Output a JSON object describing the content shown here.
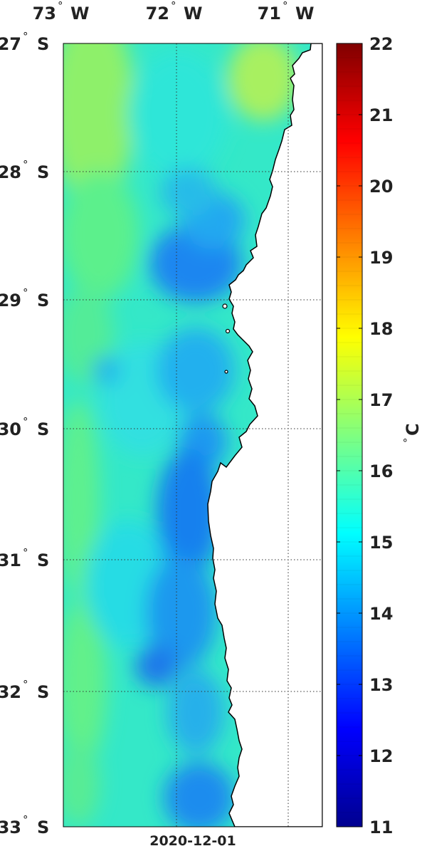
{
  "map": {
    "date": "2020-12-01",
    "lon_labels": [
      {
        "deg": "73",
        "hemi": "W"
      },
      {
        "deg": "72",
        "hemi": "W"
      },
      {
        "deg": "71",
        "hemi": "W"
      }
    ],
    "lat_labels": [
      {
        "deg": "27",
        "hemi": "S"
      },
      {
        "deg": "28",
        "hemi": "S"
      },
      {
        "deg": "29",
        "hemi": "S"
      },
      {
        "deg": "30",
        "hemi": "S"
      },
      {
        "deg": "31",
        "hemi": "S"
      },
      {
        "deg": "32",
        "hemi": "S"
      },
      {
        "deg": "33",
        "hemi": "S"
      }
    ],
    "degree_symbol": "°",
    "land_color": "#ffffff",
    "coast_color": "#000000"
  },
  "colorbar": {
    "ticks": [
      "11",
      "12",
      "13",
      "14",
      "15",
      "16",
      "17",
      "18",
      "19",
      "20",
      "21",
      "22"
    ],
    "unit_deg": "°",
    "unit_c": "C",
    "colormap": "jet",
    "range": [
      11,
      22
    ]
  }
}
